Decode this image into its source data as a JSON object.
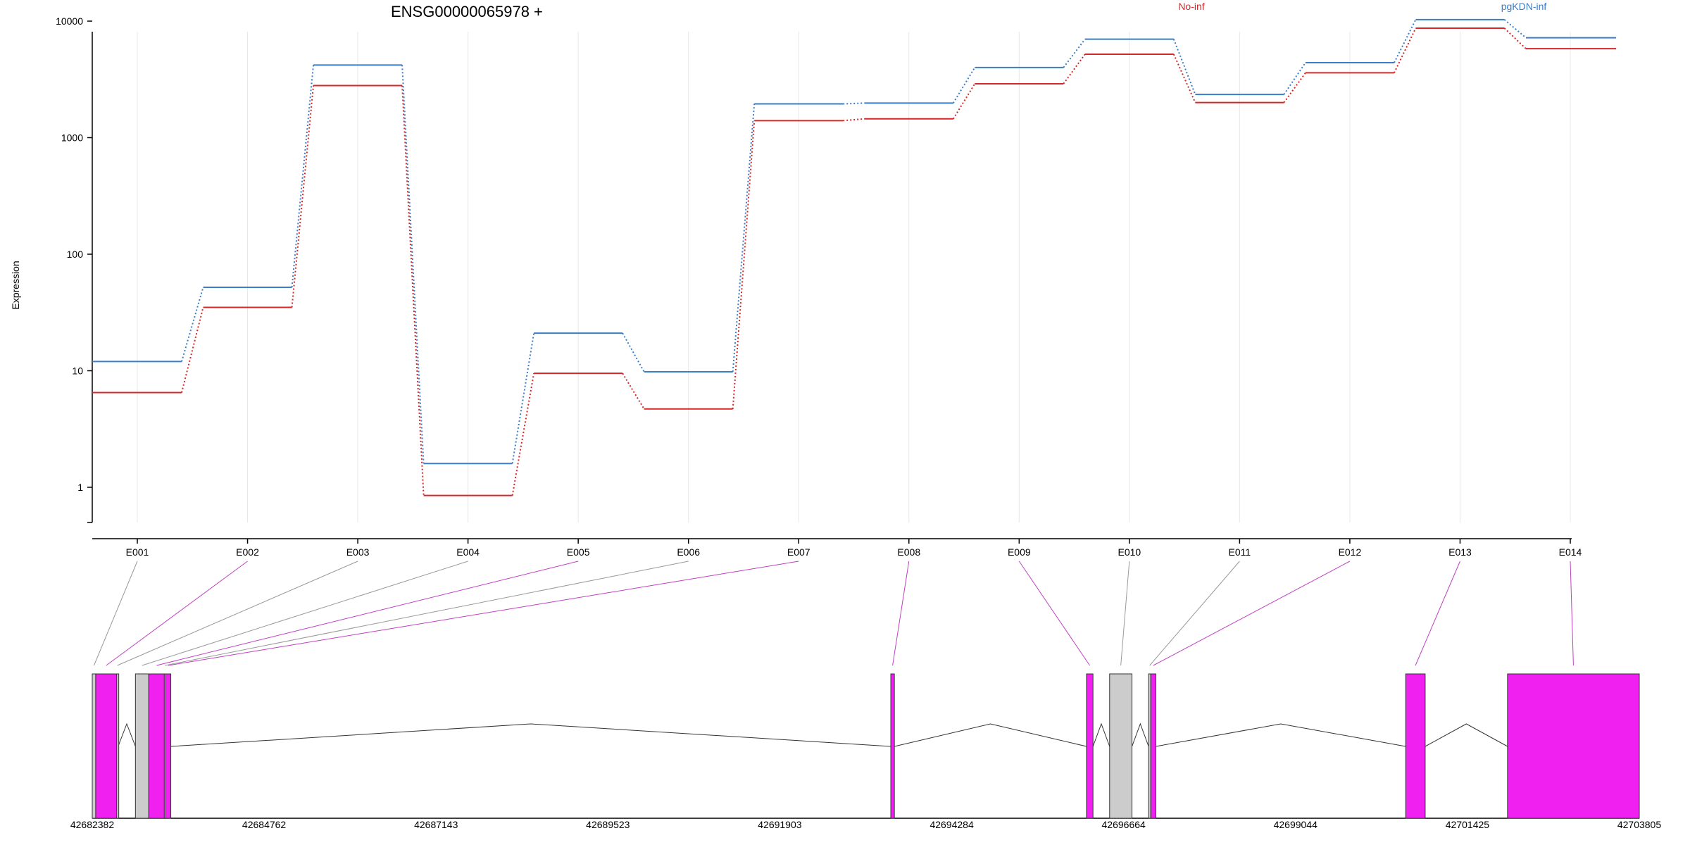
{
  "chart_data": {
    "type": "line",
    "title": "ENSG00000065978 +",
    "ylabel": "Expression",
    "yscale": "log",
    "ylim": [
      0.5,
      15000
    ],
    "yticks": [
      "1",
      "10",
      "100",
      "1000",
      "10000"
    ],
    "categories": [
      "E001",
      "E002",
      "E003",
      "E004",
      "E005",
      "E006",
      "E007",
      "E008",
      "E009",
      "E010",
      "E011",
      "E012",
      "E013",
      "E014"
    ],
    "legend": [
      "No-inf",
      "pgKDN-inf"
    ],
    "series": [
      {
        "name": "No-inf",
        "color": "#d62728",
        "values": [
          6.5,
          35,
          2800,
          0.85,
          9.5,
          4.7,
          1400,
          1450,
          2900,
          5200,
          2000,
          3600,
          8700,
          5800
        ]
      },
      {
        "name": "pgKDN-inf",
        "color": "#3a7dc9",
        "values": [
          12,
          52,
          4200,
          1.6,
          21,
          9.8,
          1950,
          1980,
          4000,
          7000,
          2350,
          4400,
          10300,
          7200
        ]
      }
    ],
    "gene_model": {
      "axis_ticks": [
        "42682382",
        "42684762",
        "42687143",
        "42689523",
        "42691903",
        "42694284",
        "42696664",
        "42699044",
        "42701425",
        "42703805"
      ],
      "range": [
        42682382,
        42703805
      ],
      "exons": [
        {
          "id": "E001",
          "start": 42682382,
          "end": 42682430,
          "tested": false
        },
        {
          "id": "E002",
          "start": 42682430,
          "end": 42682720,
          "tested": true
        },
        {
          "id": "E003",
          "start": 42682720,
          "end": 42682740,
          "tested": false
        },
        {
          "id": "E004",
          "start": 42682980,
          "end": 42683165,
          "tested": false
        },
        {
          "id": "E005",
          "start": 42683165,
          "end": 42683380,
          "tested": true
        },
        {
          "id": "E006",
          "start": 42683380,
          "end": 42683400,
          "tested": false
        },
        {
          "id": "E007",
          "start": 42683400,
          "end": 42683470,
          "tested": true
        },
        {
          "id": "E008",
          "start": 42693440,
          "end": 42693490,
          "tested": true
        },
        {
          "id": "E009",
          "start": 42696150,
          "end": 42696240,
          "tested": true
        },
        {
          "id": "E010",
          "start": 42696470,
          "end": 42696780,
          "tested": false
        },
        {
          "id": "E011",
          "start": 42697010,
          "end": 42697040,
          "tested": false
        },
        {
          "id": "E012",
          "start": 42697040,
          "end": 42697110,
          "tested": true
        },
        {
          "id": "E013",
          "start": 42700570,
          "end": 42700840,
          "tested": true
        },
        {
          "id": "E014",
          "start": 42701980,
          "end": 42703805,
          "tested": true
        }
      ],
      "colors": {
        "tested": "#f020f0",
        "untested": "#cccccc"
      }
    }
  }
}
